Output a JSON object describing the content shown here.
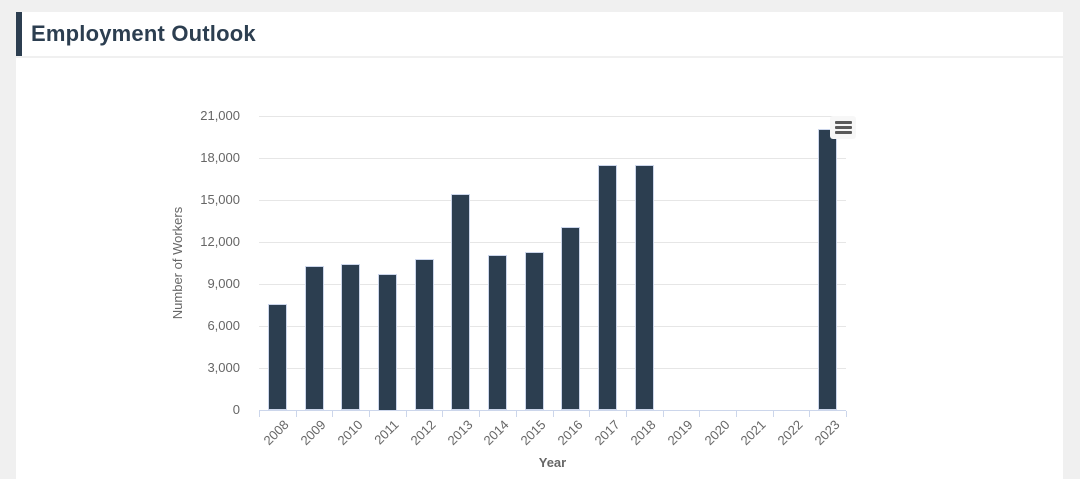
{
  "header": {
    "title": "Employment Outlook"
  },
  "colors": {
    "page_background": "#f0f0f0",
    "card_background": "#ffffff",
    "accent": "#2c3e50",
    "title_color": "#2c3e50",
    "axis_line_color": "#ccd6eb",
    "grid_color": "#e6e6e6",
    "label_color": "#666666",
    "menu_icon_color": "#5a5a5a",
    "menu_button_background": "#f7f7f7"
  },
  "chart": {
    "export_menu_icon": "hamburger-menu-icon"
  },
  "chart_data": {
    "type": "bar",
    "title": "",
    "xlabel": "Year",
    "ylabel": "Number of Workers",
    "categories": [
      "2008",
      "2009",
      "2010",
      "2011",
      "2012",
      "2013",
      "2014",
      "2015",
      "2016",
      "2017",
      "2018",
      "2019",
      "2020",
      "2021",
      "2022",
      "2023"
    ],
    "values": [
      7600,
      10300,
      10400,
      9750,
      10800,
      15450,
      11100,
      11300,
      13050,
      17500,
      17500,
      0,
      0,
      0,
      0,
      20100
    ],
    "ylim": [
      0,
      21000
    ],
    "ytick_step": 3000,
    "ytick_labels": [
      "0",
      "3,000",
      "6,000",
      "9,000",
      "12,000",
      "15,000",
      "18,000",
      "21,000"
    ],
    "grid": true,
    "legend": "none",
    "bar_color": "#2c3e50"
  }
}
